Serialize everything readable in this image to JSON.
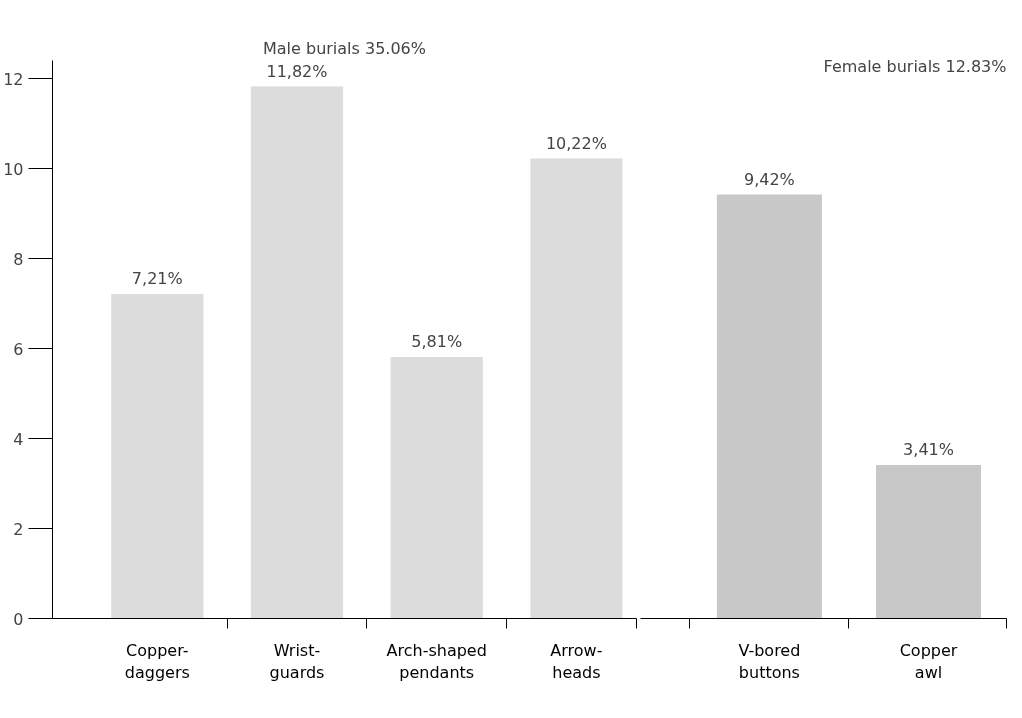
{
  "chart_data": [
    {
      "type": "bar",
      "title": "Male burials 35.06%",
      "categories": [
        "Copper-\ndaggers",
        "Wrist-\nguards",
        "Arch-shaped\npendants",
        "Arrow-\nheads"
      ],
      "values": [
        7.21,
        11.82,
        5.81,
        10.22
      ],
      "color": "#dcdcdd",
      "value_labels": [
        "7,21%",
        "11,82%",
        "5,81%",
        "10,22%"
      ],
      "ylim": [
        0,
        12.4
      ],
      "yticks": [
        0,
        2,
        4,
        6,
        8,
        10,
        12
      ],
      "grid": false
    },
    {
      "type": "bar",
      "title": "Female burials 12.83%",
      "categories": [
        "V-bored\nbuttons",
        "Copper\nawl"
      ],
      "values": [
        9.42,
        3.41
      ],
      "color": "#c8c8c9",
      "value_labels": [
        "9,42%",
        "3,41%"
      ],
      "ylim": [
        0,
        12
      ],
      "yticks": [
        0,
        2,
        4,
        6,
        8,
        10,
        12
      ],
      "tick_labels": "x",
      "grid": false
    }
  ]
}
